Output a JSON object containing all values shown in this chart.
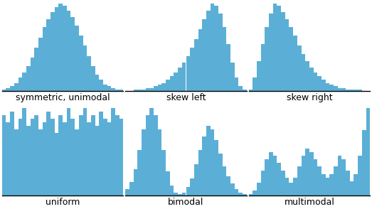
{
  "bar_color": "#5bafd6",
  "background_color": "#ffffff",
  "labels": [
    "symmetric, unimodal",
    "skew left",
    "skew right",
    "uniform",
    "bimodal",
    "multimodal"
  ],
  "label_fontsize": 9,
  "symmetric_unimodal": [
    1,
    2,
    3,
    5,
    8,
    11,
    15,
    20,
    26,
    32,
    38,
    43,
    47,
    50,
    52,
    51,
    48,
    44,
    39,
    33,
    27,
    21,
    15,
    10,
    7,
    4,
    3,
    2,
    1,
    1
  ],
  "skew_left": [
    0,
    0,
    1,
    1,
    1,
    2,
    2,
    3,
    4,
    5,
    7,
    9,
    11,
    14,
    17,
    21,
    26,
    31,
    37,
    43,
    48,
    52,
    51,
    46,
    38,
    28,
    17,
    8,
    3,
    1
  ],
  "skew_right": [
    1,
    8,
    18,
    28,
    38,
    46,
    52,
    51,
    47,
    43,
    38,
    33,
    27,
    22,
    18,
    14,
    11,
    9,
    7,
    5,
    4,
    3,
    2,
    2,
    1,
    1,
    1,
    1,
    0,
    0
  ],
  "uniform": [
    46,
    42,
    48,
    38,
    44,
    50,
    40,
    44,
    46,
    38,
    42,
    48,
    44,
    36,
    46,
    42,
    50,
    44,
    38,
    46,
    50,
    42,
    46,
    40,
    48,
    44,
    42,
    50,
    46,
    44
  ],
  "bimodal": [
    4,
    8,
    15,
    26,
    38,
    46,
    50,
    46,
    38,
    26,
    14,
    6,
    2,
    1,
    2,
    5,
    10,
    18,
    26,
    34,
    40,
    38,
    32,
    24,
    17,
    11,
    7,
    4,
    2,
    1
  ],
  "multimodal": [
    1,
    3,
    7,
    14,
    20,
    24,
    22,
    18,
    14,
    10,
    7,
    10,
    16,
    22,
    26,
    24,
    20,
    16,
    12,
    10,
    12,
    16,
    22,
    20,
    14,
    8,
    12,
    22,
    36,
    48
  ]
}
